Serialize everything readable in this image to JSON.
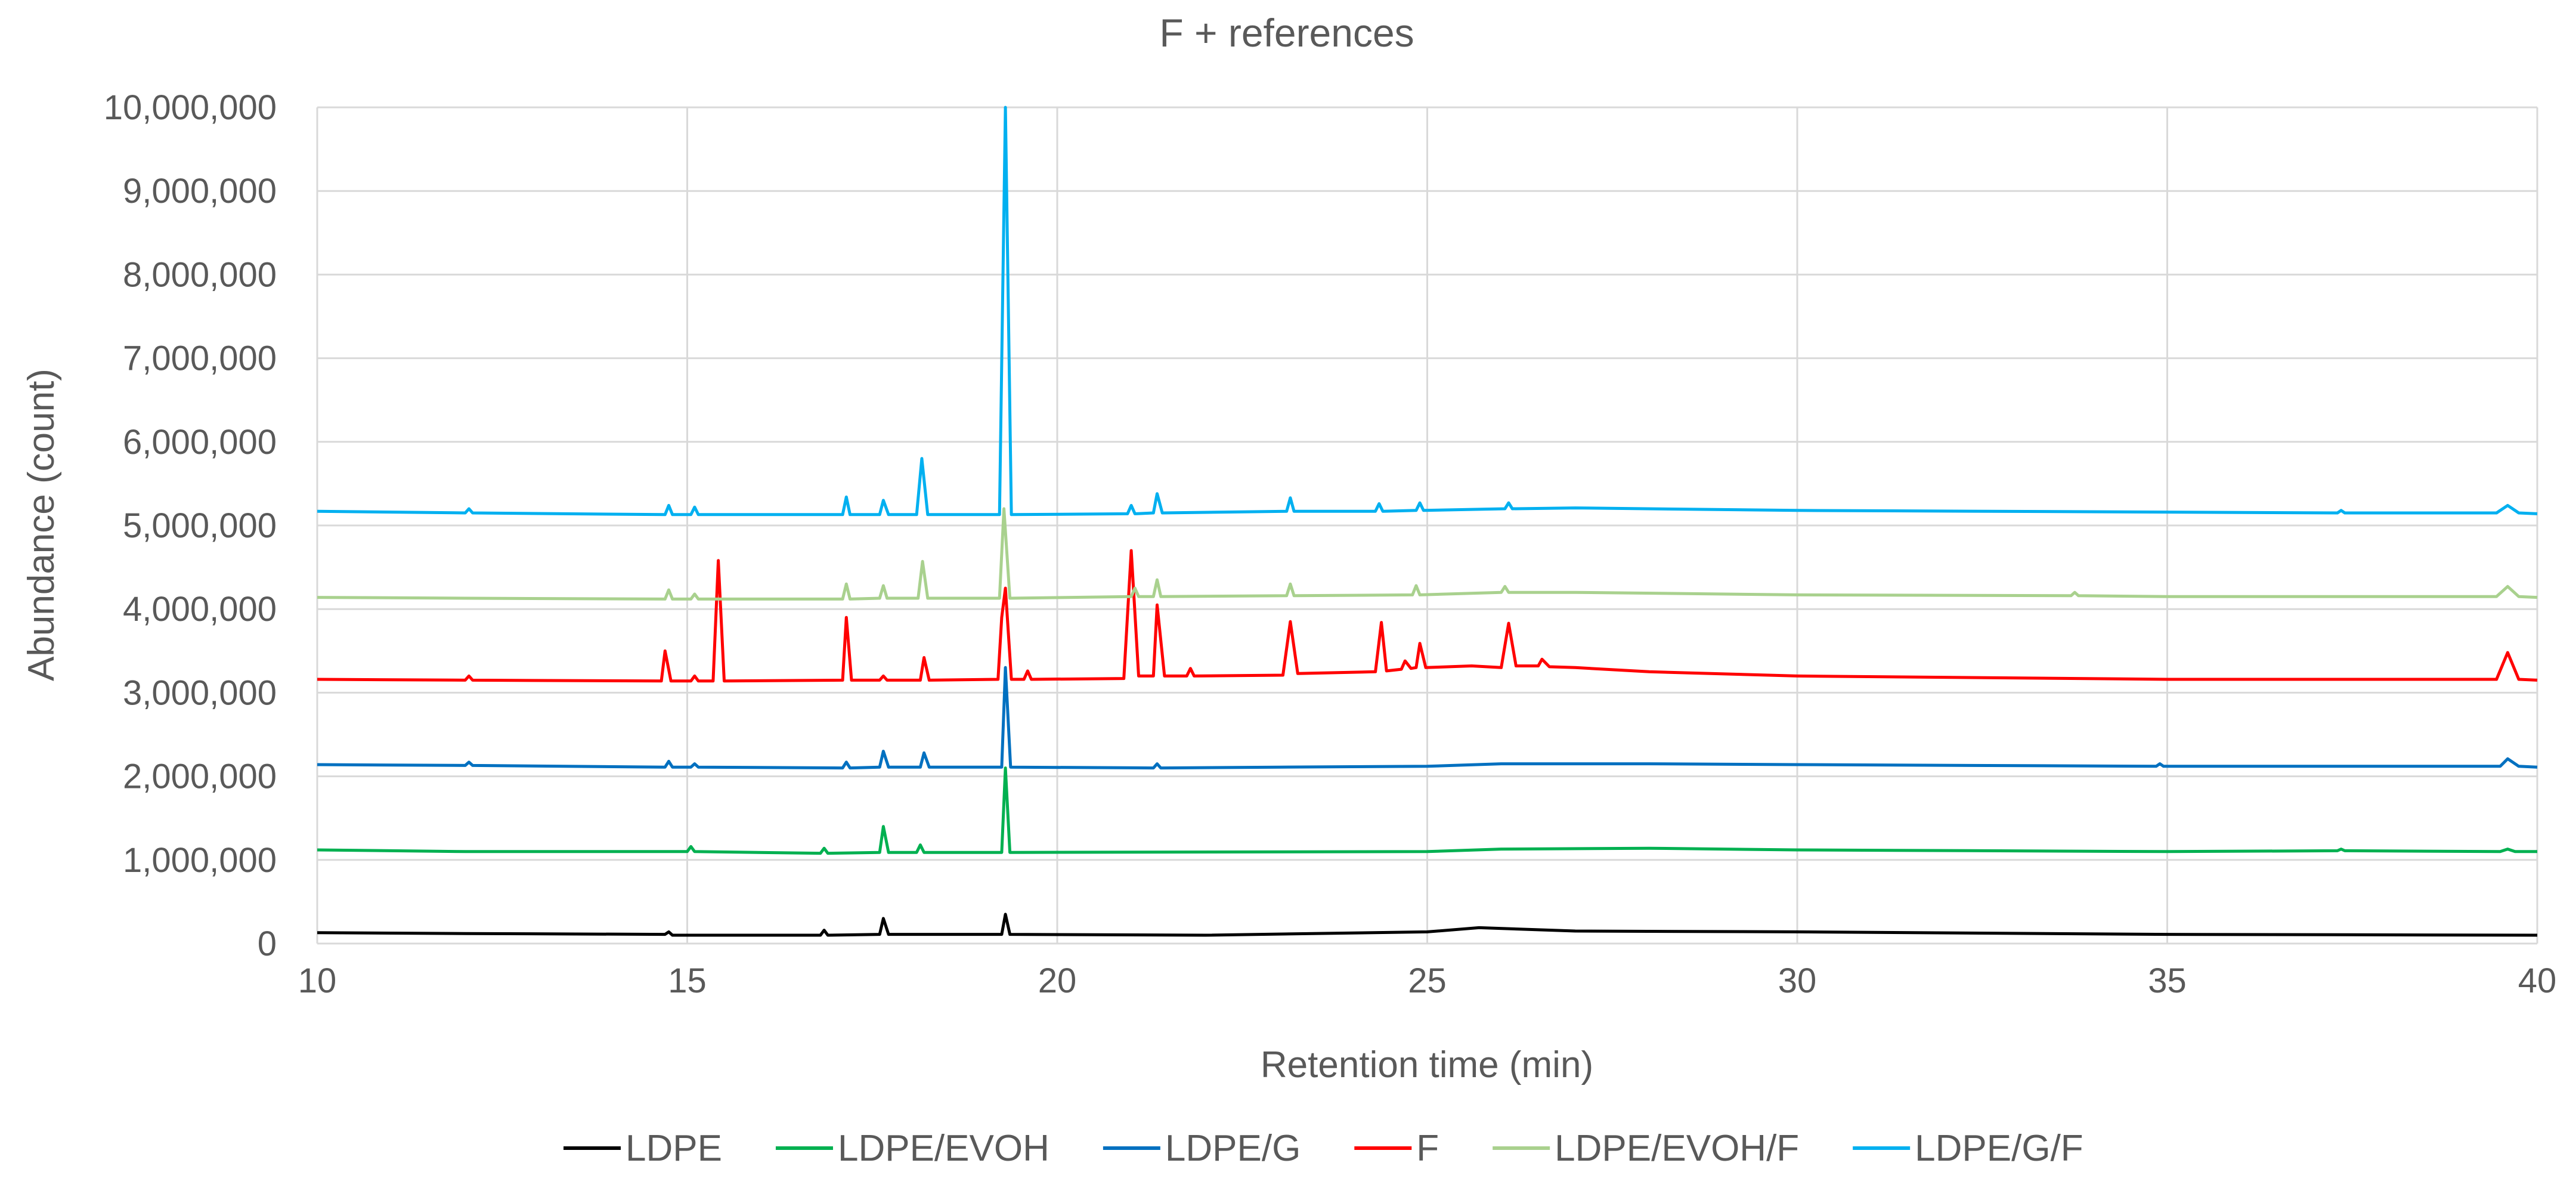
{
  "chart_data": {
    "type": "line",
    "title": "F + references",
    "xlabel": "Retention time (min)",
    "ylabel": "Abundance (count)",
    "xlim": [
      10,
      40
    ],
    "ylim": [
      0,
      10000000
    ],
    "grid": true,
    "legend_position": "bottom",
    "x_ticks": [
      {
        "value": 10,
        "label": "10"
      },
      {
        "value": 15,
        "label": "15"
      },
      {
        "value": 20,
        "label": "20"
      },
      {
        "value": 25,
        "label": "25"
      },
      {
        "value": 30,
        "label": "30"
      },
      {
        "value": 35,
        "label": "35"
      },
      {
        "value": 40,
        "label": "40"
      }
    ],
    "y_ticks": [
      {
        "value": 0,
        "label": "0"
      },
      {
        "value": 1000000,
        "label": "1,000,000"
      },
      {
        "value": 2000000,
        "label": "2,000,000"
      },
      {
        "value": 3000000,
        "label": "3,000,000"
      },
      {
        "value": 4000000,
        "label": "4,000,000"
      },
      {
        "value": 5000000,
        "label": "5,000,000"
      },
      {
        "value": 6000000,
        "label": "6,000,000"
      },
      {
        "value": 7000000,
        "label": "7,000,000"
      },
      {
        "value": 8000000,
        "label": "8,000,000"
      },
      {
        "value": 9000000,
        "label": "9,000,000"
      },
      {
        "value": 10000000,
        "label": "10,000,000"
      }
    ],
    "series": [
      {
        "name": "LDPE",
        "color": "#000000",
        "points": [
          [
            10,
            130000
          ],
          [
            12,
            120000
          ],
          [
            14.7,
            110000
          ],
          [
            14.75,
            140000
          ],
          [
            14.8,
            100000
          ],
          [
            16.8,
            100000
          ],
          [
            16.85,
            160000
          ],
          [
            16.9,
            100000
          ],
          [
            17.6,
            110000
          ],
          [
            17.65,
            300000
          ],
          [
            17.72,
            110000
          ],
          [
            19.25,
            110000
          ],
          [
            19.3,
            350000
          ],
          [
            19.36,
            110000
          ],
          [
            22,
            100000
          ],
          [
            25,
            140000
          ],
          [
            25.7,
            190000
          ],
          [
            27,
            150000
          ],
          [
            30,
            140000
          ],
          [
            35,
            110000
          ],
          [
            40,
            100000
          ]
        ]
      },
      {
        "name": "LDPE/EVOH",
        "color": "#00B050",
        "points": [
          [
            10,
            1120000
          ],
          [
            12,
            1100000
          ],
          [
            15,
            1100000
          ],
          [
            15.05,
            1160000
          ],
          [
            15.1,
            1100000
          ],
          [
            16.8,
            1080000
          ],
          [
            16.85,
            1140000
          ],
          [
            16.9,
            1080000
          ],
          [
            17.6,
            1090000
          ],
          [
            17.65,
            1400000
          ],
          [
            17.72,
            1090000
          ],
          [
            18.1,
            1090000
          ],
          [
            18.15,
            1180000
          ],
          [
            18.2,
            1090000
          ],
          [
            19.25,
            1090000
          ],
          [
            19.3,
            2100000
          ],
          [
            19.36,
            1090000
          ],
          [
            25,
            1100000
          ],
          [
            26,
            1130000
          ],
          [
            28,
            1140000
          ],
          [
            30,
            1120000
          ],
          [
            35,
            1100000
          ],
          [
            37.3,
            1110000
          ],
          [
            37.35,
            1130000
          ],
          [
            37.4,
            1110000
          ],
          [
            39.5,
            1100000
          ],
          [
            39.6,
            1130000
          ],
          [
            39.7,
            1100000
          ],
          [
            40,
            1100000
          ]
        ]
      },
      {
        "name": "LDPE/G",
        "color": "#0070C0",
        "points": [
          [
            10,
            2140000
          ],
          [
            12,
            2130000
          ],
          [
            12.05,
            2170000
          ],
          [
            12.1,
            2130000
          ],
          [
            14.7,
            2110000
          ],
          [
            14.75,
            2180000
          ],
          [
            14.8,
            2110000
          ],
          [
            15.05,
            2110000
          ],
          [
            15.1,
            2150000
          ],
          [
            15.15,
            2110000
          ],
          [
            17.1,
            2100000
          ],
          [
            17.15,
            2170000
          ],
          [
            17.2,
            2100000
          ],
          [
            17.6,
            2110000
          ],
          [
            17.65,
            2300000
          ],
          [
            17.72,
            2110000
          ],
          [
            18.15,
            2110000
          ],
          [
            18.2,
            2280000
          ],
          [
            18.27,
            2110000
          ],
          [
            19.25,
            2110000
          ],
          [
            19.3,
            3300000
          ],
          [
            19.37,
            2110000
          ],
          [
            21.3,
            2100000
          ],
          [
            21.35,
            2150000
          ],
          [
            21.4,
            2100000
          ],
          [
            23,
            2110000
          ],
          [
            25,
            2120000
          ],
          [
            26,
            2150000
          ],
          [
            28,
            2150000
          ],
          [
            30,
            2140000
          ],
          [
            34.85,
            2120000
          ],
          [
            34.9,
            2150000
          ],
          [
            34.95,
            2120000
          ],
          [
            39.5,
            2120000
          ],
          [
            39.6,
            2210000
          ],
          [
            39.75,
            2120000
          ],
          [
            40,
            2110000
          ]
        ]
      },
      {
        "name": "F",
        "color": "#FF0000",
        "points": [
          [
            10,
            3160000
          ],
          [
            12,
            3150000
          ],
          [
            12.05,
            3200000
          ],
          [
            12.1,
            3150000
          ],
          [
            14.65,
            3140000
          ],
          [
            14.7,
            3500000
          ],
          [
            14.78,
            3140000
          ],
          [
            15.05,
            3140000
          ],
          [
            15.1,
            3200000
          ],
          [
            15.15,
            3140000
          ],
          [
            15.35,
            3140000
          ],
          [
            15.42,
            4580000
          ],
          [
            15.5,
            3140000
          ],
          [
            17.1,
            3150000
          ],
          [
            17.15,
            3900000
          ],
          [
            17.22,
            3150000
          ],
          [
            17.6,
            3150000
          ],
          [
            17.65,
            3200000
          ],
          [
            17.7,
            3150000
          ],
          [
            18.15,
            3150000
          ],
          [
            18.2,
            3420000
          ],
          [
            18.27,
            3150000
          ],
          [
            19.2,
            3160000
          ],
          [
            19.25,
            3900000
          ],
          [
            19.3,
            4250000
          ],
          [
            19.38,
            3160000
          ],
          [
            19.55,
            3160000
          ],
          [
            19.6,
            3260000
          ],
          [
            19.65,
            3160000
          ],
          [
            20.9,
            3170000
          ],
          [
            21,
            4700000
          ],
          [
            21.1,
            3200000
          ],
          [
            21.3,
            3200000
          ],
          [
            21.35,
            4050000
          ],
          [
            21.45,
            3200000
          ],
          [
            21.75,
            3200000
          ],
          [
            21.8,
            3290000
          ],
          [
            21.85,
            3200000
          ],
          [
            23.05,
            3210000
          ],
          [
            23.15,
            3850000
          ],
          [
            23.25,
            3230000
          ],
          [
            24.3,
            3250000
          ],
          [
            24.38,
            3840000
          ],
          [
            24.45,
            3260000
          ],
          [
            24.65,
            3280000
          ],
          [
            24.7,
            3380000
          ],
          [
            24.78,
            3290000
          ],
          [
            24.85,
            3300000
          ],
          [
            24.9,
            3590000
          ],
          [
            24.98,
            3300000
          ],
          [
            25.6,
            3320000
          ],
          [
            26,
            3300000
          ],
          [
            26.1,
            3830000
          ],
          [
            26.2,
            3320000
          ],
          [
            26.5,
            3320000
          ],
          [
            26.55,
            3400000
          ],
          [
            26.65,
            3310000
          ],
          [
            27,
            3300000
          ],
          [
            28,
            3250000
          ],
          [
            30,
            3200000
          ],
          [
            35,
            3160000
          ],
          [
            39.45,
            3160000
          ],
          [
            39.6,
            3480000
          ],
          [
            39.75,
            3160000
          ],
          [
            40,
            3150000
          ]
        ]
      },
      {
        "name": "LDPE/EVOH/F",
        "color": "#A9D18E",
        "points": [
          [
            10,
            4140000
          ],
          [
            12,
            4130000
          ],
          [
            14.7,
            4120000
          ],
          [
            14.75,
            4230000
          ],
          [
            14.8,
            4120000
          ],
          [
            15.05,
            4120000
          ],
          [
            15.1,
            4180000
          ],
          [
            15.15,
            4120000
          ],
          [
            17.1,
            4120000
          ],
          [
            17.15,
            4300000
          ],
          [
            17.2,
            4120000
          ],
          [
            17.6,
            4130000
          ],
          [
            17.65,
            4280000
          ],
          [
            17.7,
            4130000
          ],
          [
            18.12,
            4130000
          ],
          [
            18.18,
            4570000
          ],
          [
            18.25,
            4130000
          ],
          [
            19.22,
            4130000
          ],
          [
            19.28,
            5200000
          ],
          [
            19.36,
            4130000
          ],
          [
            21,
            4150000
          ],
          [
            21.05,
            4250000
          ],
          [
            21.1,
            4150000
          ],
          [
            21.3,
            4150000
          ],
          [
            21.35,
            4350000
          ],
          [
            21.4,
            4150000
          ],
          [
            23.1,
            4160000
          ],
          [
            23.15,
            4300000
          ],
          [
            23.2,
            4160000
          ],
          [
            24.8,
            4170000
          ],
          [
            24.85,
            4280000
          ],
          [
            24.9,
            4170000
          ],
          [
            26,
            4200000
          ],
          [
            26.05,
            4270000
          ],
          [
            26.1,
            4200000
          ],
          [
            27,
            4200000
          ],
          [
            30,
            4170000
          ],
          [
            33.7,
            4160000
          ],
          [
            33.75,
            4200000
          ],
          [
            33.8,
            4160000
          ],
          [
            35,
            4150000
          ],
          [
            39.45,
            4150000
          ],
          [
            39.6,
            4270000
          ],
          [
            39.75,
            4150000
          ],
          [
            40,
            4140000
          ]
        ]
      },
      {
        "name": "LDPE/G/F",
        "color": "#00B0F0",
        "points": [
          [
            10,
            5170000
          ],
          [
            12,
            5150000
          ],
          [
            12.05,
            5200000
          ],
          [
            12.1,
            5150000
          ],
          [
            14.7,
            5130000
          ],
          [
            14.75,
            5240000
          ],
          [
            14.8,
            5130000
          ],
          [
            15.05,
            5130000
          ],
          [
            15.1,
            5220000
          ],
          [
            15.15,
            5130000
          ],
          [
            17.1,
            5130000
          ],
          [
            17.15,
            5340000
          ],
          [
            17.2,
            5130000
          ],
          [
            17.6,
            5130000
          ],
          [
            17.65,
            5300000
          ],
          [
            17.72,
            5130000
          ],
          [
            18.1,
            5130000
          ],
          [
            18.17,
            5800000
          ],
          [
            18.25,
            5130000
          ],
          [
            19.22,
            5130000
          ],
          [
            19.3,
            10000000
          ],
          [
            19.38,
            5130000
          ],
          [
            20.95,
            5140000
          ],
          [
            21,
            5240000
          ],
          [
            21.05,
            5140000
          ],
          [
            21.3,
            5150000
          ],
          [
            21.35,
            5380000
          ],
          [
            21.42,
            5150000
          ],
          [
            23.1,
            5170000
          ],
          [
            23.15,
            5330000
          ],
          [
            23.2,
            5170000
          ],
          [
            24.3,
            5170000
          ],
          [
            24.35,
            5260000
          ],
          [
            24.4,
            5170000
          ],
          [
            24.85,
            5180000
          ],
          [
            24.9,
            5270000
          ],
          [
            24.95,
            5180000
          ],
          [
            26.05,
            5200000
          ],
          [
            26.1,
            5270000
          ],
          [
            26.15,
            5200000
          ],
          [
            27,
            5210000
          ],
          [
            30,
            5180000
          ],
          [
            35,
            5160000
          ],
          [
            37.3,
            5150000
          ],
          [
            37.35,
            5180000
          ],
          [
            37.4,
            5150000
          ],
          [
            39.45,
            5150000
          ],
          [
            39.6,
            5240000
          ],
          [
            39.75,
            5150000
          ],
          [
            40,
            5140000
          ]
        ]
      }
    ]
  }
}
